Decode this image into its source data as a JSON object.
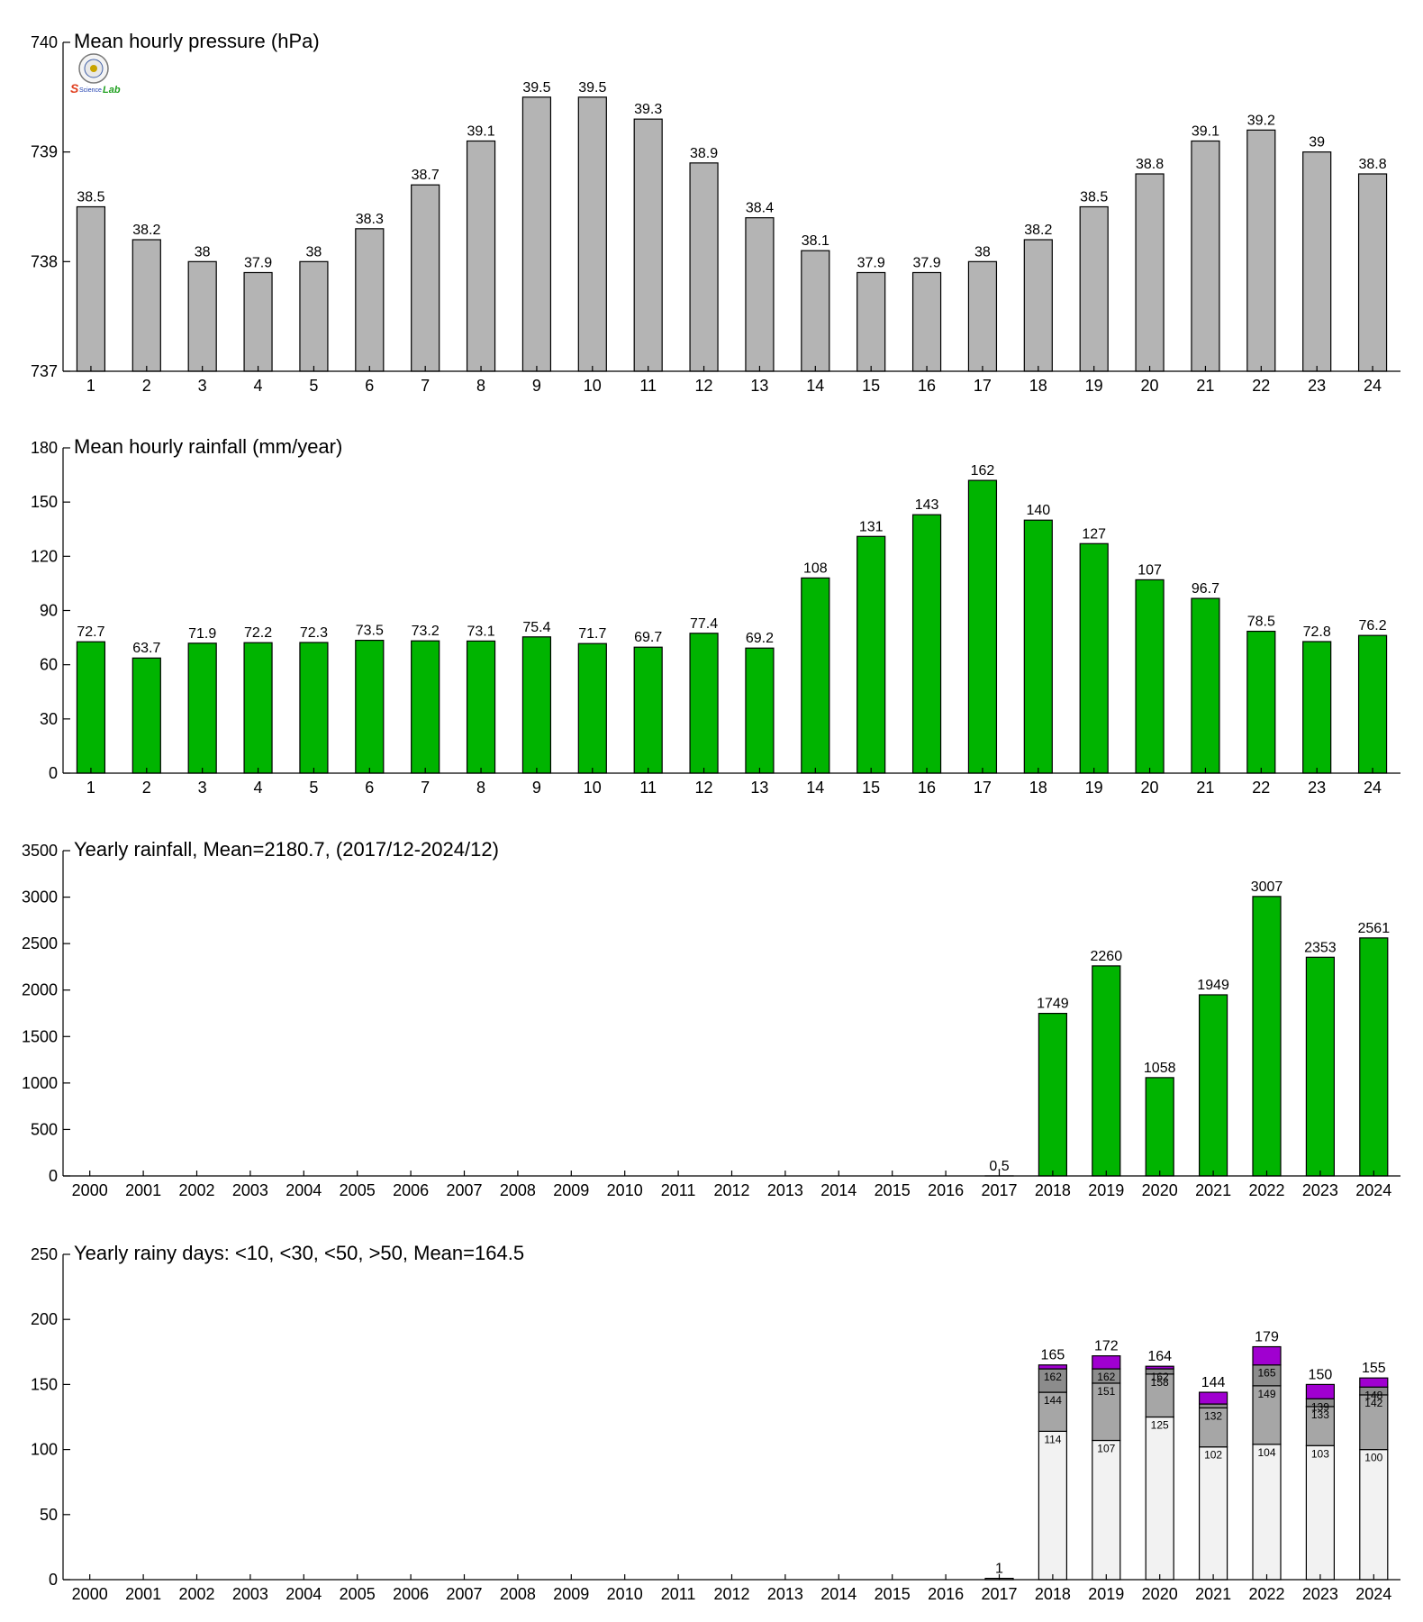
{
  "logo": {
    "text_left": "S",
    "text_right": "Lab"
  },
  "colors": {
    "gray": "#b4b4b4",
    "green": "#00b400",
    "white": "#f2f2f2",
    "stack_gray": "#a6a6a6",
    "purple": "#a000d0",
    "dark": "#8c8c8c"
  },
  "chart_data": [
    {
      "type": "bar",
      "title": "Mean hourly pressure (hPa)",
      "categories": [
        "1",
        "2",
        "3",
        "4",
        "5",
        "6",
        "7",
        "8",
        "9",
        "10",
        "11",
        "12",
        "13",
        "14",
        "15",
        "16",
        "17",
        "18",
        "19",
        "20",
        "21",
        "22",
        "23",
        "24"
      ],
      "values": [
        738.5,
        738.2,
        738.0,
        737.9,
        738.0,
        738.3,
        738.7,
        739.1,
        739.5,
        739.5,
        739.3,
        738.9,
        738.4,
        738.1,
        737.9,
        737.9,
        738.0,
        738.2,
        738.5,
        738.8,
        739.1,
        739.2,
        739.0,
        738.8
      ],
      "labels": [
        "38.5",
        "38.2",
        "38",
        "37.9",
        "38",
        "38.3",
        "38.7",
        "39.1",
        "39.5",
        "39.5",
        "39.3",
        "38.9",
        "38.4",
        "38.1",
        "37.9",
        "37.9",
        "38",
        "38.2",
        "38.5",
        "38.8",
        "39.1",
        "39.2",
        "39",
        "38.8"
      ],
      "ylim": [
        737,
        740
      ],
      "yticks": [
        737,
        738,
        739,
        740
      ],
      "color": "#b4b4b4"
    },
    {
      "type": "bar",
      "title": "Mean hourly rainfall (mm/year)",
      "categories": [
        "1",
        "2",
        "3",
        "4",
        "5",
        "6",
        "7",
        "8",
        "9",
        "10",
        "11",
        "12",
        "13",
        "14",
        "15",
        "16",
        "17",
        "18",
        "19",
        "20",
        "21",
        "22",
        "23",
        "24"
      ],
      "values": [
        72.7,
        63.7,
        71.9,
        72.2,
        72.3,
        73.5,
        73.2,
        73.1,
        75.4,
        71.7,
        69.7,
        77.4,
        69.2,
        108,
        131,
        143,
        162,
        140,
        127,
        107,
        96.7,
        78.5,
        72.8,
        76.2
      ],
      "labels": [
        "72.7",
        "63.7",
        "71.9",
        "72.2",
        "72.3",
        "73.5",
        "73.2",
        "73.1",
        "75.4",
        "71.7",
        "69.7",
        "77.4",
        "69.2",
        "108",
        "131",
        "143",
        "162",
        "140",
        "127",
        "107",
        "96.7",
        "78.5",
        "72.8",
        "76.2"
      ],
      "ylim": [
        0,
        180
      ],
      "yticks": [
        0,
        30,
        60,
        90,
        120,
        150,
        180
      ],
      "color": "#00b400"
    },
    {
      "type": "bar",
      "title": "Yearly rainfall, Mean=2180.7, (2017/12-2024/12)",
      "categories": [
        "2000",
        "2001",
        "2002",
        "2003",
        "2004",
        "2005",
        "2006",
        "2007",
        "2008",
        "2009",
        "2010",
        "2011",
        "2012",
        "2013",
        "2014",
        "2015",
        "2016",
        "2017",
        "2018",
        "2019",
        "2020",
        "2021",
        "2022",
        "2023",
        "2024"
      ],
      "values": [
        null,
        null,
        null,
        null,
        null,
        null,
        null,
        null,
        null,
        null,
        null,
        null,
        null,
        null,
        null,
        null,
        null,
        0.5,
        1749,
        2260,
        1058,
        1949,
        3007,
        2353,
        2561
      ],
      "labels": [
        "",
        "",
        "",
        "",
        "",
        "",
        "",
        "",
        "",
        "",
        "",
        "",
        "",
        "",
        "",
        "",
        "",
        "0.5",
        "1749",
        "2260",
        "1058",
        "1949",
        "3007",
        "2353",
        "2561"
      ],
      "ylim": [
        0,
        3500
      ],
      "yticks": [
        0,
        500,
        1000,
        1500,
        2000,
        2500,
        3000,
        3500
      ],
      "color": "#00b400"
    },
    {
      "type": "bar",
      "stacked": true,
      "title": "Yearly rainy days: <10, <30, <50, >50, Mean=164.5",
      "categories": [
        "2000",
        "2001",
        "2002",
        "2003",
        "2004",
        "2005",
        "2006",
        "2007",
        "2008",
        "2009",
        "2010",
        "2011",
        "2012",
        "2013",
        "2014",
        "2015",
        "2016",
        "2017",
        "2018",
        "2019",
        "2020",
        "2021",
        "2022",
        "2023",
        "2024"
      ],
      "ylim": [
        0,
        250
      ],
      "yticks": [
        0,
        50,
        100,
        150,
        200,
        250
      ],
      "stacks": [
        {
          "year": "2017",
          "lt10": 1,
          "lt30": 1,
          "lt50": 1,
          "total": 1,
          "labels": [
            "1",
            "",
            ""
          ],
          "total_label": "1"
        },
        {
          "year": "2018",
          "lt10": 114,
          "lt30": 144,
          "lt50": 162,
          "total": 165,
          "labels": [
            "114",
            "144",
            "162"
          ],
          "total_label": "165"
        },
        {
          "year": "2019",
          "lt10": 107,
          "lt30": 151,
          "lt50": 162,
          "total": 172,
          "labels": [
            "107",
            "151",
            "162"
          ],
          "total_label": "172"
        },
        {
          "year": "2020",
          "lt10": 125,
          "lt30": 158,
          "lt50": 162,
          "total": 164,
          "labels": [
            "125",
            "158",
            "162"
          ],
          "total_label": "164"
        },
        {
          "year": "2021",
          "lt10": 102,
          "lt30": 132,
          "lt50": 135,
          "total": 144,
          "labels": [
            "102",
            "132",
            ""
          ],
          "total_label": "144"
        },
        {
          "year": "2022",
          "lt10": 104,
          "lt30": 149,
          "lt50": 165,
          "total": 179,
          "labels": [
            "104",
            "149",
            "165"
          ],
          "total_label": "179"
        },
        {
          "year": "2023",
          "lt10": 103,
          "lt30": 133,
          "lt50": 139,
          "total": 150,
          "labels": [
            "103",
            "133",
            "139"
          ],
          "total_label": "150"
        },
        {
          "year": "2024",
          "lt10": 100,
          "lt30": 142,
          "lt50": 148,
          "total": 155,
          "labels": [
            "100",
            "142",
            "148"
          ],
          "total_label": "155"
        }
      ]
    }
  ]
}
